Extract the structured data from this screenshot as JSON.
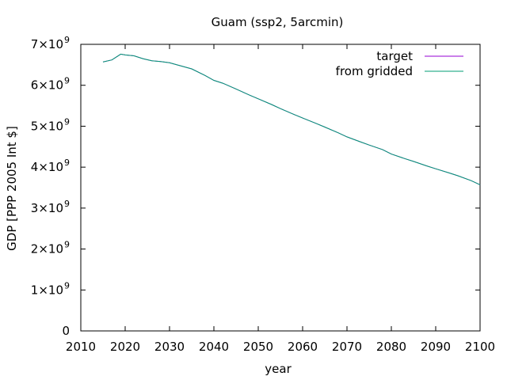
{
  "chart_data": {
    "type": "line",
    "title": "Guam (ssp2, 5arcmin)",
    "xlabel": "year",
    "ylabel": "GDP [PPP 2005 Int $]",
    "xlim": [
      2010,
      2100
    ],
    "ylim": [
      0,
      7000000000
    ],
    "x_ticks": [
      "2010",
      "2020",
      "2030",
      "2040",
      "2050",
      "2060",
      "2070",
      "2080",
      "2090",
      "2100"
    ],
    "y_ticks": [
      {
        "value": 0,
        "base": "0",
        "exp": ""
      },
      {
        "value": 1000000000,
        "base": "1×10",
        "exp": "9"
      },
      {
        "value": 2000000000,
        "base": "2×10",
        "exp": "9"
      },
      {
        "value": 3000000000,
        "base": "3×10",
        "exp": "9"
      },
      {
        "value": 4000000000,
        "base": "4×10",
        "exp": "9"
      },
      {
        "value": 5000000000,
        "base": "5×10",
        "exp": "9"
      },
      {
        "value": 6000000000,
        "base": "6×10",
        "exp": "9"
      },
      {
        "value": 7000000000,
        "base": "7×10",
        "exp": "9"
      }
    ],
    "grid": false,
    "legend_position": "top-right",
    "x": [
      2015,
      2017,
      2019,
      2020,
      2022,
      2024,
      2026,
      2028,
      2030,
      2032,
      2035,
      2038,
      2040,
      2042,
      2045,
      2048,
      2050,
      2053,
      2055,
      2058,
      2060,
      2063,
      2065,
      2068,
      2070,
      2073,
      2075,
      2078,
      2080,
      2083,
      2085,
      2088,
      2090,
      2093,
      2095,
      2098,
      2100
    ],
    "series": [
      {
        "name": "target",
        "color": "#9400d3",
        "values": [
          6.57,
          6.62,
          6.76,
          6.74,
          6.72,
          6.65,
          6.6,
          6.58,
          6.55,
          6.49,
          6.4,
          6.24,
          6.12,
          6.05,
          5.91,
          5.76,
          5.67,
          5.53,
          5.43,
          5.29,
          5.2,
          5.07,
          4.98,
          4.84,
          4.74,
          4.62,
          4.54,
          4.43,
          4.32,
          4.21,
          4.14,
          4.03,
          3.96,
          3.86,
          3.79,
          3.67,
          3.57
        ]
      },
      {
        "name": "from gridded",
        "color": "#009e73",
        "values": [
          6.57,
          6.62,
          6.76,
          6.74,
          6.72,
          6.65,
          6.6,
          6.58,
          6.55,
          6.49,
          6.4,
          6.24,
          6.12,
          6.05,
          5.91,
          5.76,
          5.67,
          5.53,
          5.43,
          5.29,
          5.2,
          5.07,
          4.98,
          4.84,
          4.74,
          4.62,
          4.54,
          4.43,
          4.32,
          4.21,
          4.14,
          4.03,
          3.96,
          3.86,
          3.79,
          3.67,
          3.57
        ]
      }
    ],
    "value_unit": 1000000000
  }
}
